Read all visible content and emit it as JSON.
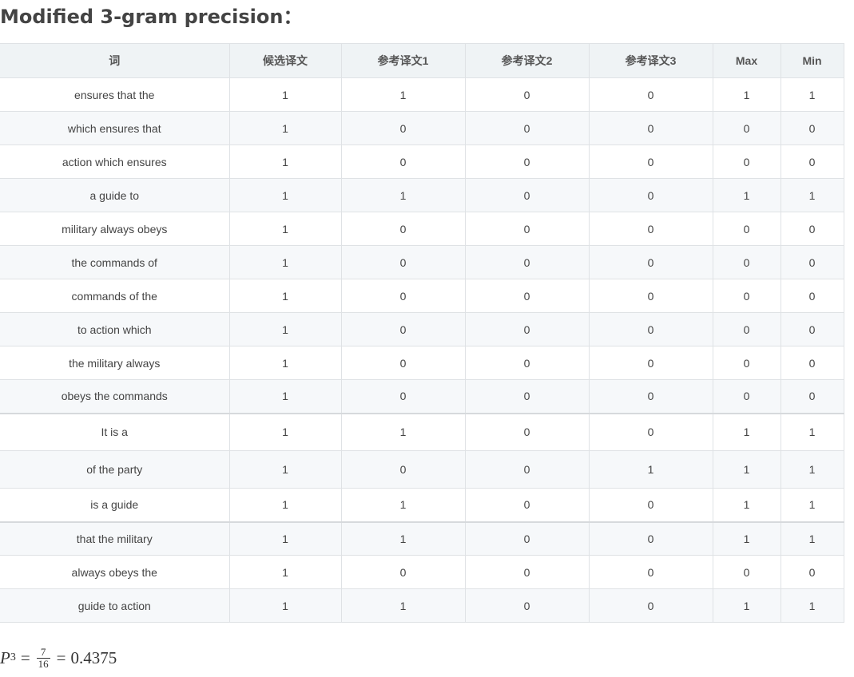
{
  "title": "Modified 3-gram precision：",
  "table": {
    "headers": [
      "词",
      "候选译文",
      "参考译文1",
      "参考译文2",
      "参考译文3",
      "Max",
      "Min"
    ],
    "rows": [
      {
        "cells": [
          "ensures that the",
          "1",
          "1",
          "0",
          "0",
          "1",
          "1"
        ]
      },
      {
        "cells": [
          "which ensures that",
          "1",
          "0",
          "0",
          "0",
          "0",
          "0"
        ]
      },
      {
        "cells": [
          "action which ensures",
          "1",
          "0",
          "0",
          "0",
          "0",
          "0"
        ]
      },
      {
        "cells": [
          "a guide to",
          "1",
          "1",
          "0",
          "0",
          "1",
          "1"
        ]
      },
      {
        "cells": [
          "military always obeys",
          "1",
          "0",
          "0",
          "0",
          "0",
          "0"
        ]
      },
      {
        "cells": [
          "the commands of",
          "1",
          "0",
          "0",
          "0",
          "0",
          "0"
        ]
      },
      {
        "cells": [
          "commands of the",
          "1",
          "0",
          "0",
          "0",
          "0",
          "0"
        ]
      },
      {
        "cells": [
          "to action which",
          "1",
          "0",
          "0",
          "0",
          "0",
          "0"
        ]
      },
      {
        "cells": [
          "the military always",
          "1",
          "0",
          "0",
          "0",
          "0",
          "0"
        ]
      },
      {
        "cells": [
          "obeys the commands",
          "1",
          "0",
          "0",
          "0",
          "0",
          "0"
        ]
      },
      {
        "cells": [
          "It is a",
          "1",
          "1",
          "0",
          "0",
          "1",
          "1"
        ]
      },
      {
        "cells": [
          "of the party",
          "1",
          "0",
          "0",
          "1",
          "1",
          "1"
        ]
      },
      {
        "cells": [
          "is a guide",
          "1",
          "1",
          "0",
          "0",
          "1",
          "1"
        ]
      },
      {
        "cells": [
          "that the military",
          "1",
          "1",
          "0",
          "0",
          "1",
          "1"
        ]
      },
      {
        "cells": [
          "always obeys the",
          "1",
          "0",
          "0",
          "0",
          "0",
          "0"
        ]
      },
      {
        "cells": [
          "guide to action",
          "1",
          "1",
          "0",
          "0",
          "1",
          "1"
        ]
      }
    ]
  },
  "formula": {
    "variable": "P",
    "subscript": "3",
    "equals": "=",
    "numerator": "7",
    "denominator": "16",
    "result": "0.4375"
  }
}
